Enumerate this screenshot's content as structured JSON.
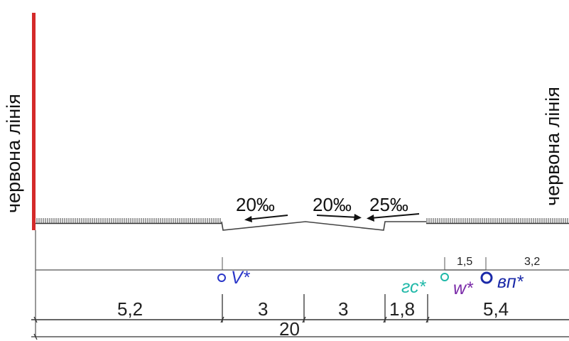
{
  "labels": {
    "red_line_left": "червона лінія",
    "red_line_right": "червона лінія"
  },
  "slopes": [
    "20‰",
    "20‰",
    "25‰"
  ],
  "networks": {
    "v": {
      "label": "V*",
      "color": "#2a36c8"
    },
    "gs": {
      "label": "гс*",
      "color": "#1fb8a8"
    },
    "w": {
      "label": "w*",
      "color": "#7a2aa8"
    },
    "vp": {
      "label": "вп*",
      "color": "#1b2aa8"
    }
  },
  "offsets": {
    "a": "1,5",
    "b": "3,2"
  },
  "dimensions": [
    "5,2",
    "3",
    "3",
    "1,8",
    "5,4"
  ],
  "total": "20",
  "colors": {
    "red_line": "#d42a2a",
    "line": "#333333"
  }
}
